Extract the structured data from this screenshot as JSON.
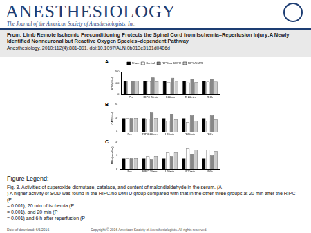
{
  "header": {
    "journal": "ANESTHESIOLOGY",
    "subtitle": "The Journal of the American Society of Anesthesiologists, Inc."
  },
  "source": {
    "title": "From: Limb Remote Ischemic Preconditioning Protects the Spinal Cord from Ischemia–Reperfusion Injury:A Newly Identified Nonneuronal but Reactive Oxygen Species–dependent Pathway",
    "citation": "Anesthesiology. 2010;112(4):881-891. doi:10.1097/ALN.0b013e3181d0486d"
  },
  "chart_data": [
    {
      "type": "bar",
      "title": "A",
      "y_label": "SOD(U/ml)",
      "categories": [
        "Pre",
        "RIPC 20min",
        "I 20min",
        "R 20min",
        "R 6h"
      ],
      "series": [
        {
          "name": "Sham",
          "color": "#000000",
          "values": [
            120,
            118,
            120,
            119,
            121
          ]
        },
        {
          "name": "Control",
          "color": "#ffffff",
          "values": [
            119,
            117,
            110,
            105,
            112
          ]
        },
        {
          "name": "RIPC/no DMTU",
          "color": "#888888",
          "values": [
            121,
            150,
            148,
            140,
            138
          ]
        },
        {
          "name": "RIPC/DMTU",
          "color": "#cccccc",
          "values": [
            120,
            115,
            112,
            108,
            113
          ]
        }
      ],
      "ylim": [
        0,
        200
      ],
      "yticks": [
        0,
        100,
        200
      ],
      "grid": false,
      "legend": "top"
    },
    {
      "type": "bar",
      "title": "B",
      "y_label": "CAT(U/ml)",
      "categories": [
        "Pre",
        "RIPC 20min",
        "I 20min",
        "R 20min",
        "R 6h"
      ],
      "series": [
        {
          "name": "Sham",
          "color": "#000000",
          "values": [
            10,
            10,
            10,
            10,
            10
          ]
        },
        {
          "name": "Control",
          "color": "#ffffff",
          "values": [
            10,
            9.5,
            8,
            7,
            8
          ]
        },
        {
          "name": "RIPC/no DMTU",
          "color": "#888888",
          "values": [
            10,
            14,
            13,
            12,
            12
          ]
        },
        {
          "name": "RIPC/DMTU",
          "color": "#cccccc",
          "values": [
            10,
            10,
            9,
            8,
            9
          ]
        }
      ],
      "ylim": [
        0,
        20
      ],
      "yticks": [
        0,
        10,
        20
      ],
      "grid": false
    },
    {
      "type": "bar",
      "title": "C",
      "y_label": "MDA(nmol/ml)",
      "categories": [
        "Pre",
        "RIPC 20min",
        "I 20min",
        "R 20min",
        "R 6h"
      ],
      "series": [
        {
          "name": "Sham",
          "color": "#000000",
          "values": [
            4,
            4,
            4,
            4,
            4
          ]
        },
        {
          "name": "Control",
          "color": "#ffffff",
          "values": [
            4,
            4.5,
            6,
            7.5,
            7
          ]
        },
        {
          "name": "RIPC/no DMTU",
          "color": "#888888",
          "values": [
            4,
            3.5,
            4.5,
            5.5,
            5
          ]
        },
        {
          "name": "RIPC/DMTU",
          "color": "#cccccc",
          "values": [
            4,
            4.5,
            6,
            7,
            6.5
          ]
        }
      ],
      "ylim": [
        0,
        10
      ],
      "yticks": [
        0,
        5,
        10
      ],
      "grid": false
    }
  ],
  "legend": {
    "heading": "Figure Legend:",
    "lines": [
      "Fig. 3. Activities of superoxide dismutase, catalase, and content of malondialdehyde in the serum. (A",
      ") A higher activity of SOD was found in the RIPC/no DMTU group compared with that in the other three groups at 20 min after the RIPC (P",
      "= 0.001), 20 min of ischemia (P",
      "= 0.001), and 20 min (P",
      "= 0.001) and 6 h after reperfusion (P"
    ]
  },
  "footer": {
    "download": "Date of download: 6/6/2016",
    "copyright": "Copyright © 2016 American Society of Anesthesiologists. All rights reserved."
  }
}
